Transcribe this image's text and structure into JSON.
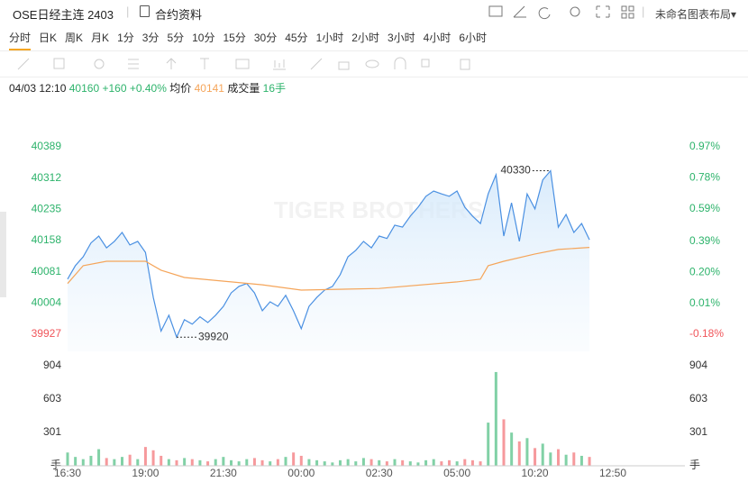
{
  "header": {
    "title": "OSE日经主连 2403",
    "contract": "合约资料",
    "layout": "未命名图表布局"
  },
  "periods": [
    "分时",
    "日K",
    "周K",
    "月K",
    "1分",
    "3分",
    "5分",
    "10分",
    "15分",
    "30分",
    "45分",
    "1小时",
    "2小时",
    "3小时",
    "4小时",
    "6小时"
  ],
  "info": {
    "time": "04/03 12:10",
    "price": 40160,
    "change": {
      "value": 160,
      "label": "+160"
    },
    "change_pct": {
      "value": 0.4,
      "label": "+0.40%"
    },
    "avg_label": "均价",
    "avg": 40141,
    "volume_label": "成交量",
    "volume": {
      "value": 16,
      "label": "16手"
    }
  },
  "chart_data": [
    {
      "type": "line",
      "watermark": "TIGER BROTHERS",
      "xlim": [
        0,
        140
      ],
      "ylim": [
        39885,
        40462
      ],
      "yticks": [
        39927,
        40004,
        40081,
        40158,
        40235,
        40312,
        40389
      ],
      "y2lim": [
        -0.285,
        1.152
      ],
      "y2ticks": [
        {
          "value": -0.18,
          "label": "-0.18%"
        },
        {
          "value": 0.01,
          "label": "0.01%"
        },
        {
          "value": 0.2,
          "label": "0.20%"
        },
        {
          "value": 0.39,
          "label": "0.39%"
        },
        {
          "value": 0.59,
          "label": "0.59%"
        },
        {
          "value": 0.78,
          "label": "0.78%"
        },
        {
          "value": 0.97,
          "label": "0.97%"
        }
      ],
      "up_color": "#2db36b",
      "down_color": "#f0555a",
      "series": [
        {
          "color": "#4a90e2",
          "x": [
            0,
            2,
            4,
            6,
            8,
            10,
            12,
            14,
            16,
            18,
            20,
            22,
            24,
            26,
            28,
            30,
            32,
            34,
            36,
            38,
            40,
            42,
            44,
            46,
            48,
            50,
            52,
            54,
            56,
            58,
            60,
            62,
            64,
            66,
            68,
            70,
            72,
            74,
            76,
            78,
            80,
            82,
            84,
            86,
            88,
            90,
            92,
            94,
            96,
            98,
            100,
            102,
            104,
            106,
            108,
            110,
            112,
            114,
            116,
            118,
            120,
            122,
            124,
            126,
            128,
            130,
            132,
            134
          ],
          "values": [
            40063,
            40096,
            40118,
            40152,
            40169,
            40140,
            40156,
            40178,
            40147,
            40156,
            40129,
            40018,
            39935,
            39974,
            39920,
            39963,
            39952,
            39970,
            39956,
            39974,
            39996,
            40029,
            40045,
            40052,
            40029,
            39985,
            40007,
            39996,
            40023,
            39985,
            39941,
            39996,
            40018,
            40036,
            40045,
            40074,
            40118,
            40134,
            40156,
            40140,
            40169,
            40163,
            40196,
            40191,
            40218,
            40240,
            40267,
            40280,
            40273,
            40267,
            40280,
            40240,
            40218,
            40200,
            40273,
            40320,
            40169,
            40251,
            40156,
            40273,
            40236,
            40307,
            40330,
            40191,
            40222,
            40178,
            40200,
            40160
          ]
        },
        {
          "color": "#f5a55a",
          "x": [
            0,
            4,
            10,
            20,
            24,
            30,
            50,
            60,
            80,
            100,
            106,
            108,
            112,
            120,
            126,
            134
          ],
          "values": [
            40052,
            40096,
            40107,
            40107,
            40085,
            40067,
            40049,
            40036,
            40040,
            40056,
            40063,
            40096,
            40107,
            40125,
            40136,
            40141
          ]
        }
      ],
      "annotations": [
        {
          "x": 124,
          "value": 40330
        },
        {
          "x": 28,
          "value": 39920
        }
      ]
    },
    {
      "type": "bar",
      "xlim": [
        0,
        140
      ],
      "xticks": [
        {
          "value": 0,
          "label": "16:30"
        },
        {
          "value": 20,
          "label": "19:00"
        },
        {
          "value": 40,
          "label": "21:30"
        },
        {
          "value": 60,
          "label": "00:00"
        },
        {
          "value": 80,
          "label": "02:30"
        },
        {
          "value": 100,
          "label": "05:00"
        },
        {
          "value": 120,
          "label": "10:20"
        },
        {
          "value": 140,
          "label": "12:50"
        }
      ],
      "ylim": [
        0,
        993
      ],
      "yticks": [
        {
          "value": 0,
          "label": "手"
        },
        301,
        603,
        904
      ],
      "x": [
        0,
        2,
        4,
        6,
        8,
        10,
        12,
        14,
        16,
        18,
        20,
        22,
        24,
        26,
        28,
        30,
        32,
        34,
        36,
        38,
        40,
        42,
        44,
        46,
        48,
        50,
        52,
        54,
        56,
        58,
        60,
        62,
        64,
        66,
        68,
        70,
        72,
        74,
        76,
        78,
        80,
        82,
        84,
        86,
        88,
        90,
        92,
        94,
        96,
        98,
        100,
        102,
        104,
        106,
        108,
        110,
        112,
        114,
        116,
        118,
        120,
        122,
        124,
        126,
        128,
        130,
        132,
        134
      ],
      "values": [
        120,
        80,
        60,
        90,
        150,
        70,
        60,
        80,
        100,
        60,
        170,
        140,
        90,
        60,
        50,
        70,
        60,
        50,
        40,
        60,
        80,
        50,
        40,
        60,
        70,
        50,
        40,
        60,
        80,
        120,
        90,
        60,
        50,
        40,
        30,
        50,
        60,
        40,
        70,
        60,
        50,
        40,
        60,
        50,
        40,
        30,
        50,
        60,
        40,
        50,
        40,
        60,
        50,
        40,
        390,
        847,
        420,
        300,
        220,
        250,
        160,
        200,
        120,
        150,
        100,
        120,
        90,
        80
      ]
    }
  ]
}
